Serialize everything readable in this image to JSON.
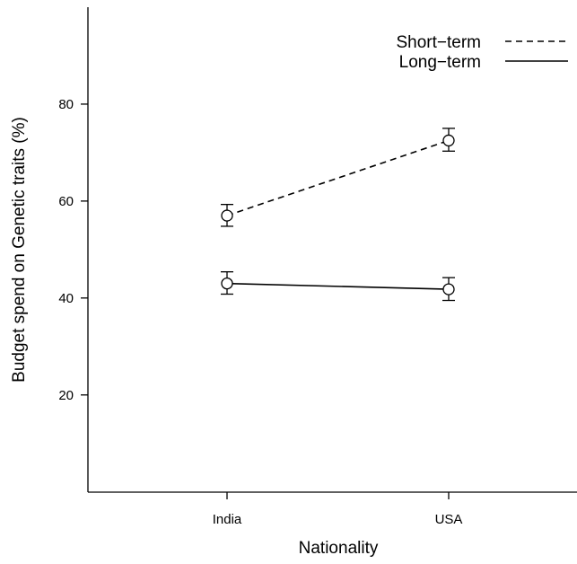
{
  "chart_data": {
    "type": "line",
    "categories": [
      "India",
      "USA"
    ],
    "xlabel": "Nationality",
    "ylabel": "Budget spend on Genetic traits (%)",
    "ylim": [
      0,
      100
    ],
    "yticks": [
      20,
      40,
      60,
      80
    ],
    "grid": false,
    "legend_position": "top-right",
    "series": [
      {
        "name": "Short−term",
        "line_style": "dashed",
        "marker": "open-circle",
        "values": [
          57,
          72.5
        ],
        "error_low": [
          54.8,
          70.3
        ],
        "error_high": [
          59.3,
          75
        ]
      },
      {
        "name": "Long−term",
        "line_style": "solid",
        "marker": "open-circle",
        "values": [
          43,
          41.8
        ],
        "error_low": [
          40.8,
          39.5
        ],
        "error_high": [
          45.4,
          44.2
        ]
      }
    ]
  }
}
